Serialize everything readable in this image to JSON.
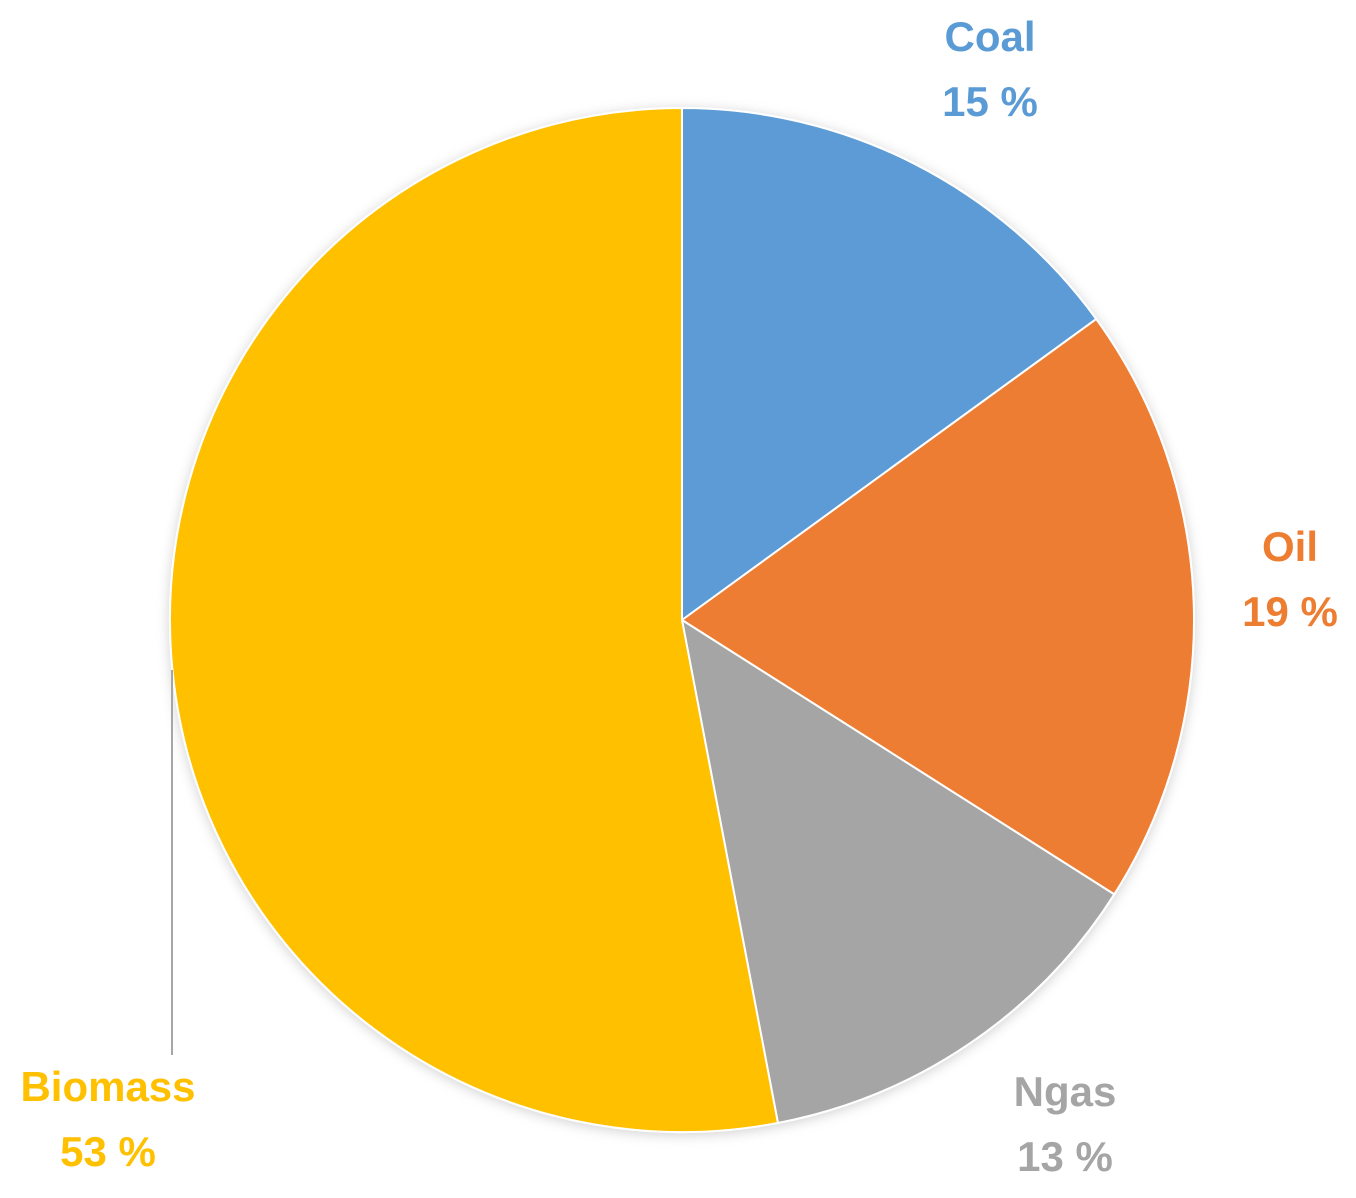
{
  "chart_data": {
    "type": "pie",
    "categories": [
      "Coal",
      "Oil",
      "Ngas",
      "Biomass"
    ],
    "values": [
      15,
      19,
      13,
      53
    ],
    "value_labels": [
      "15 %",
      "19 %",
      "13 %",
      "53 %"
    ],
    "colors": [
      "#5b9bd5",
      "#ed7d31",
      "#a5a5a5",
      "#ffc000"
    ]
  }
}
